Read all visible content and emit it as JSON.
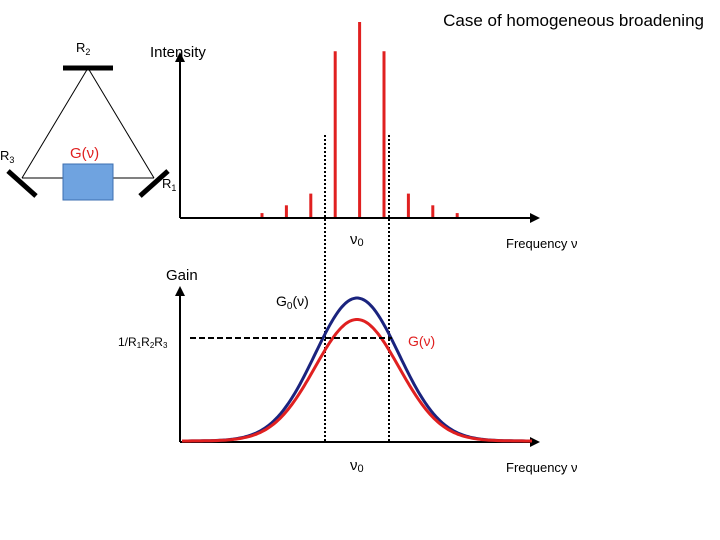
{
  "title": "Case of homogeneous broadening",
  "cavity": {
    "mirror_top": "R",
    "mirror_top_sub": "2",
    "mirror_left": "R",
    "mirror_left_sub": "3",
    "mirror_right": "R",
    "mirror_right_sub": "1",
    "gain_medium_label": "G(ν)",
    "colors": {
      "gain_medium": "#6fa3e0",
      "mirror": "#000000",
      "beam": "#000000"
    }
  },
  "spectrum_plot": {
    "ylabel": "Intensity",
    "xlabel": "Frequency ν",
    "center_label_main": "ν",
    "center_label_sub": "0",
    "mode_color": "#e02020",
    "mode_intensities": [
      0.02,
      0.06,
      0.12,
      0.85,
      1.0,
      0.85,
      0.12,
      0.06,
      0.02
    ]
  },
  "gain_plot": {
    "ylabel": "Gain",
    "xlabel": "Frequency ν",
    "center_label_main": "ν",
    "center_label_sub": "0",
    "threshold_label_parts": [
      "1/R",
      "1",
      "R",
      "2",
      "R",
      "3"
    ],
    "unsaturated_label_main": "G",
    "unsaturated_label_sub": "0",
    "unsaturated_label_rest": "(ν)",
    "saturated_label": "G(ν)",
    "colors": {
      "unsaturated": "#1a237e",
      "saturated": "#e02020",
      "threshold": "#000000"
    },
    "unsaturated_peak": 1.0,
    "saturated_peak": 0.85,
    "threshold_level": 0.72
  }
}
